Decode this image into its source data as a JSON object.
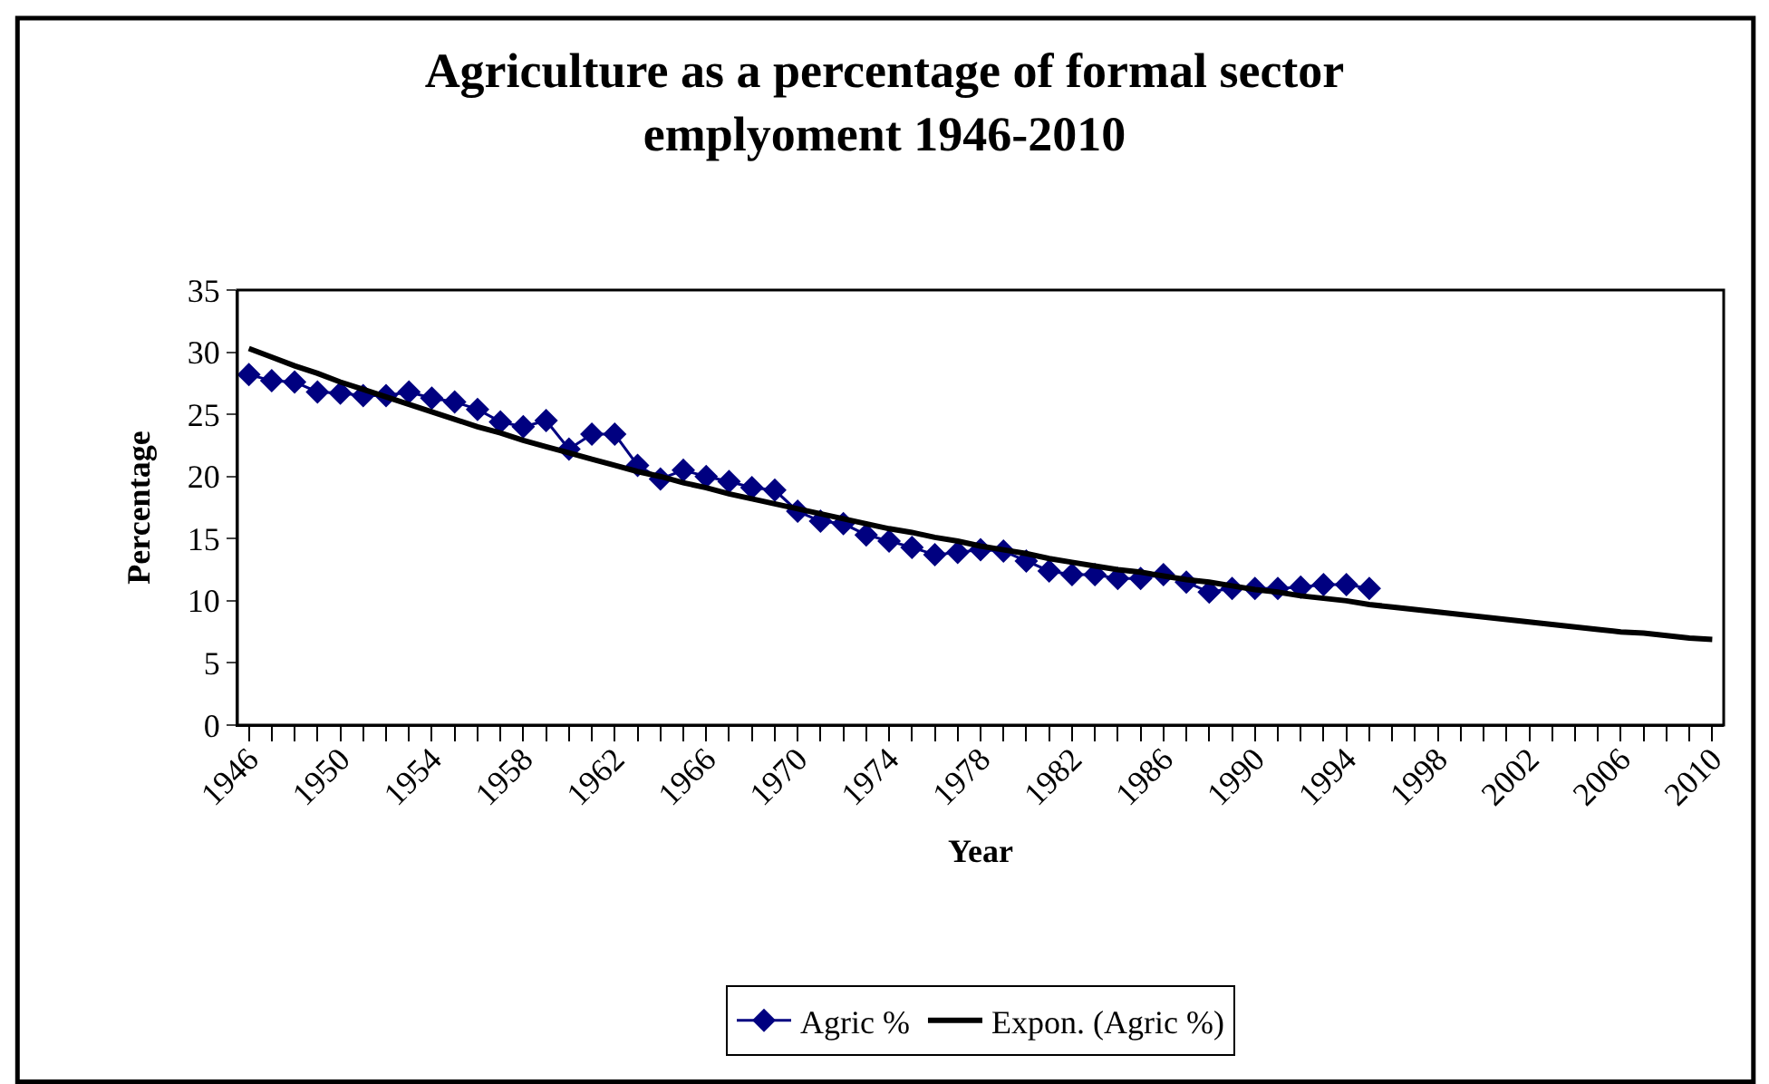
{
  "chart_data": {
    "type": "line",
    "title": "Agriculture as a percentage of formal sector emplyoment 1946-2010",
    "xlabel": "Year",
    "ylabel": "Percentage",
    "marker": "diamond",
    "categories": [
      "1946",
      null,
      null,
      null,
      "1950",
      null,
      null,
      null,
      "1954",
      null,
      null,
      null,
      "1958",
      null,
      null,
      null,
      "1962",
      null,
      null,
      null,
      "1966",
      null,
      null,
      null,
      "1970",
      null,
      null,
      null,
      "1974",
      null,
      null,
      null,
      "1978",
      null,
      null,
      null,
      "1982",
      null,
      null,
      null,
      "1986",
      null,
      null,
      null,
      "1990",
      null,
      null,
      null,
      "1994",
      null,
      null,
      null,
      "1998",
      null,
      null,
      null,
      "2002",
      null,
      null,
      null,
      "2006",
      null,
      null,
      null,
      "2010"
    ],
    "series": [
      {
        "name": "Agric %",
        "color": "#000080",
        "values": [
          28.2,
          27.7,
          27.6,
          26.8,
          26.7,
          26.5,
          26.5,
          26.8,
          26.3,
          26.0,
          25.4,
          24.4,
          24.0,
          24.5,
          22.2,
          23.4,
          23.4,
          20.9,
          19.8,
          20.5,
          20.0,
          19.6,
          19.1,
          18.9,
          17.2,
          16.4,
          16.2,
          15.3,
          14.8,
          14.3,
          13.7,
          13.9,
          14.1,
          14.0,
          13.2,
          12.4,
          12.1,
          12.1,
          11.8,
          11.8,
          12.1,
          11.5,
          10.7,
          11.0,
          11.0,
          11.0,
          11.1,
          11.3,
          11.3,
          11.0,
          null,
          null,
          null,
          null,
          null,
          null,
          null,
          null,
          null,
          null,
          null,
          null,
          null,
          null,
          null
        ]
      },
      {
        "name": "Expon. (Agric %)",
        "color": "#000000",
        "marker": "none",
        "values": [
          30.3,
          29.6,
          28.9,
          28.3,
          27.6,
          27.0,
          26.4,
          25.8,
          25.2,
          24.6,
          24.0,
          23.5,
          22.9,
          22.4,
          21.9,
          21.4,
          20.9,
          20.4,
          20.0,
          19.5,
          19.1,
          18.6,
          18.2,
          17.8,
          17.4,
          17.0,
          16.6,
          16.2,
          15.8,
          15.5,
          15.1,
          14.8,
          14.4,
          14.1,
          13.8,
          13.4,
          13.1,
          12.8,
          12.5,
          12.3,
          12.0,
          11.7,
          11.5,
          11.2,
          10.9,
          10.7,
          10.4,
          10.2,
          10.0,
          9.7,
          9.5,
          9.3,
          9.1,
          8.9,
          8.7,
          8.5,
          8.3,
          8.1,
          7.9,
          7.7,
          7.5,
          7.4,
          7.2,
          7.0,
          6.9
        ]
      }
    ],
    "ylim": [
      0,
      35
    ],
    "yticks": [
      0,
      5,
      10,
      15,
      20,
      25,
      30,
      35
    ],
    "legend": "bottom"
  }
}
